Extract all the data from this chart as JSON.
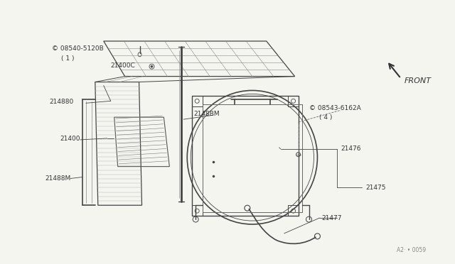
{
  "bg_color": "#f5f5f0",
  "line_color": "#444444",
  "text_color": "#333333",
  "label_s08540": "© 08540-5120B",
  "label_1": "( 1 )",
  "label_21400C": "21400C",
  "label_21480": "214880",
  "label_21400": "21400",
  "label_21488M": "21488M",
  "label_2148BM": "2148BM",
  "label_s08543": "© 08543-6162A",
  "label_4": "( 4 )",
  "label_21476": "21476",
  "label_21475": "21475",
  "label_21477": "21477",
  "label_front": "FRONT",
  "watermark": "A2· • 0059"
}
